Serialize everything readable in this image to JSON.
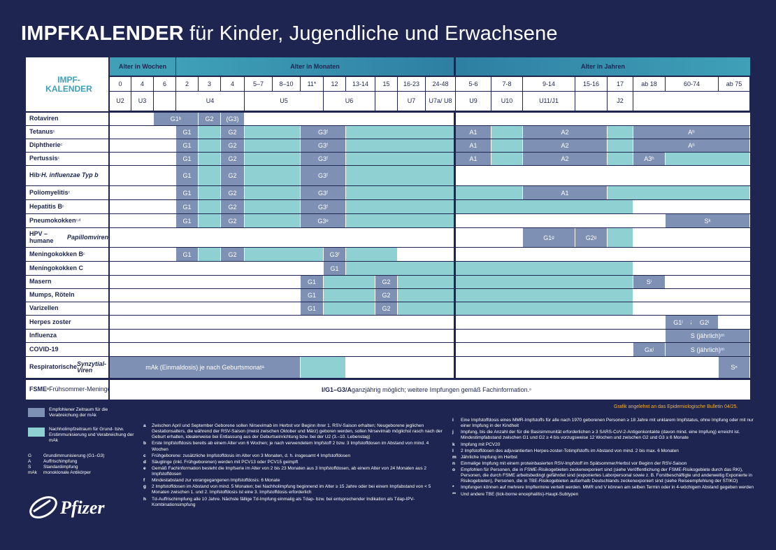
{
  "title": {
    "bold": "IMPFKALENDER",
    "rest": " für Kinder, Jugendliche und Erwachsene"
  },
  "corner": "IMPF-\nKALENDER",
  "headers": {
    "weeks": "Alter in Wochen",
    "months": "Alter in Monaten",
    "years": "Alter in Jahren"
  },
  "ages": [
    "0",
    "4",
    "6",
    "2",
    "3",
    "4",
    "5–7",
    "8–10",
    "11*",
    "12",
    "13-14",
    "15",
    "16-23",
    "24-48",
    "5-6",
    "7-8",
    "9-14",
    "15-16",
    "17",
    "ab 18",
    "60-74",
    "ab 75"
  ],
  "u_exams": [
    "U2",
    "U3",
    "U4",
    "U5",
    "U6",
    "U7",
    "U7a/ U8",
    "U9",
    "U10",
    "U11/J1",
    "J2"
  ],
  "rows": [
    "Rotaviren",
    "Tetanus",
    "Diphtherie",
    "Pertussis",
    "Hib H. influenzae Typ b",
    "Poliomyelitis",
    "Hepatitis B",
    "Pneumokokken",
    "HPV – humane Papillomviren",
    "Meningokokken B",
    "Meningokokken C",
    "Masern",
    "Mumps, Röteln",
    "Varizellen",
    "Herpes zoster",
    "Influenza",
    "COVID-19",
    "Respiratorische Synzytial-Viren"
  ],
  "row_labels": [
    {
      "name": "Rotaviren",
      "sup": ""
    },
    {
      "name": "Tetanus",
      "sup": "c"
    },
    {
      "name": "Diphtherie",
      "sup": "c"
    },
    {
      "name": "Pertussis",
      "sup": "c"
    },
    {
      "name": "Hib",
      "sup": "c",
      "line2": "H. influenzae Typ b"
    },
    {
      "name": "Poliomyelitis",
      "sup": "c"
    },
    {
      "name": "Hepatitis B",
      "sup": "c"
    },
    {
      "name": "Pneumokokken",
      "sup": "c,d"
    },
    {
      "name": "HPV – humane",
      "line2": "Papillomviren"
    },
    {
      "name": "Meningokokken B",
      "sup": "c"
    },
    {
      "name": "Meningokokken C"
    },
    {
      "name": "Masern"
    },
    {
      "name": "Mumps, Röteln"
    },
    {
      "name": "Varizellen"
    },
    {
      "name": "Herpes zoster"
    },
    {
      "name": "Influenza"
    },
    {
      "name": "COVID-19"
    },
    {
      "name": "Respiratorische",
      "line2": "Synzytial-Viren"
    }
  ],
  "dose_labels": [
    "G1",
    "G2",
    "(G3)",
    "G3",
    "A1",
    "A2",
    "A3",
    "S",
    "Gx",
    "S (jährlich)",
    "G1",
    "G2"
  ],
  "rsv_text": "mAk (Einmaldosis) je nach Geburtsmonat",
  "fsme": {
    "label": "FSME",
    "sup": "o",
    "label2": " Frühsommer-",
    "label3": "Meningoenzephalitis**",
    "text_bold": "I/G1–G3/A",
    "text": " ganzjährig möglich; weitere Impfungen gemäß Fachinformation.",
    "text_sup": "o"
  },
  "source": "Grafik angelehnt an das Epidemiologische Bulletin 04/25.",
  "legend": {
    "rec": "Empfohlener Zeitraum für die Verabreichung der mAk",
    "catch": "Nachholimpfzeitraum für Grund- bzw. Erstimmunisierung und Verabreichung der mAk",
    "abbr": [
      [
        "G",
        "Grundimmunisierung (G1–G3)"
      ],
      [
        "A",
        "Auffrischimpfung"
      ],
      [
        "S",
        "Standardimpfung"
      ],
      [
        "mAk",
        "monoklonale Antikörper"
      ]
    ]
  },
  "brand": "Pfizer",
  "notes_left": [
    [
      "a",
      "Zwischen April und September Geborene sollen Nirsevimab im Herbst vor Beginn ihrer 1. RSV-Saison erhalten; Neugeborene jeglichen Gestationsalters, die während der RSV-Saison (meist zwischen Oktober und März) geboren werden, sollen Nirsevimab möglichst rasch nach der Geburt erhalten, idealerweise bei Entlassung aus der Geburtseinrichtung bzw. bei der U2 (3.–10. Lebenstag)"
    ],
    [
      "b",
      "Erste Impfstoffdosis bereits ab einem Alter von 6 Wochen; je nach verwendetem Impfstoff 2 bzw. 3 Impfstoffdosen im Abstand von mind. 4 Wochen"
    ],
    [
      "c",
      "Frühgeborene: zusätzliche Impfstoffdosis im Alter von 3 Monaten, d. h. insgesamt 4 Impfstoffdosen"
    ],
    [
      "d",
      "Säuglinge (inkl. Frühgeborenen) werden mit PCV13 oder PCV15 geimpft"
    ],
    [
      "e",
      "Gemäß Fachinformation besteht die Impfserie im Alter von 2 bis 23 Monaten aus 3 Impfstoffdosen, ab einem Alter von 24 Monaten aus 2 Impfstoffdosen"
    ],
    [
      "f",
      "Mindestabstand zur vorangegangenen Impfstoffdosis: 6 Monate"
    ],
    [
      "g",
      "2 Impfstoffdosen im Abstand von mind. 5 Monaten; bei Nachholimpfung beginnend im Alter ≥ 15 Jahre oder bei einem Impfabstand von < 5 Monaten zwischen 1. und 2. Impfstoffdosis ist eine 3. Impfstoffdosis erforderlich"
    ],
    [
      "h",
      "Td-Auffrischimpfung alle 10 Jahre. Nächste fällige Td-Impfung einmalig als Tdap- bzw. bei entsprechender Indikation als Tdap-IPV-Kombinationsimpfung"
    ]
  ],
  "notes_right": [
    [
      "i",
      "Eine Impfstoffdosis eines MMR-Impfstoffs für alle nach 1970 geborenen Personen ≥ 18 Jahre mit unklarem Impfstatus, ohne Impfung oder mit nur einer Impfung in der Kindheit"
    ],
    [
      "j",
      "Impfung, bis die Anzahl der für die Basisimmunität erforderlichen ≥ 3 SARS-CoV-2-Antigenkontakte (davon mind. eine Impfung) erreicht ist. Mindestimpfabstand zwischen G1 und G2 ≥ 4 bis vorzugsweise 12 Wochen und zwischen G2 und G3 ≥ 6 Monate"
    ],
    [
      "k",
      "Impfung mit PCV20"
    ],
    [
      "l",
      "2 Impfstoffdosen des adjuvantierten Herpes-zoster-Totimpfstoffs im Abstand von mind. 2 bis max. 6 Monaten"
    ],
    [
      "m",
      "Jährliche Impfung im Herbst"
    ],
    [
      "n",
      "Einmalige Impfung mit einem proteinbasierten RSV-Impfstoff im Spätsommer/Herbst vor Beginn der RSV-Saison"
    ],
    [
      "o",
      "Empfohlen für Personen, die in FSME-Risikogebieten zeckenexponiert sind (siehe Veröffentlichung der FSME-Risikogebiete durch das RKI), Personen, die durch FSME arbeitsbedingt gefährdet sind (exponiertes Laborpersonal sowie z. B. Forstbeschäftigte und anderweitig Exponierte in Risikogebieten), Personen, die in TBE-Risikogebieten außerhalb Deutschlands zeckenexponiert sind (siehe Reiseempfehlung der STIKO)"
    ],
    [
      "*",
      "Impfungen können auf mehrere Impftermine verteilt werden. MMR und V können am selben Termin oder in 4-wöchigem Abstand gegeben werden"
    ],
    [
      "**",
      "Und andere TBE (tick-borne encephalitis)-Haupt-Subtypen"
    ]
  ]
}
